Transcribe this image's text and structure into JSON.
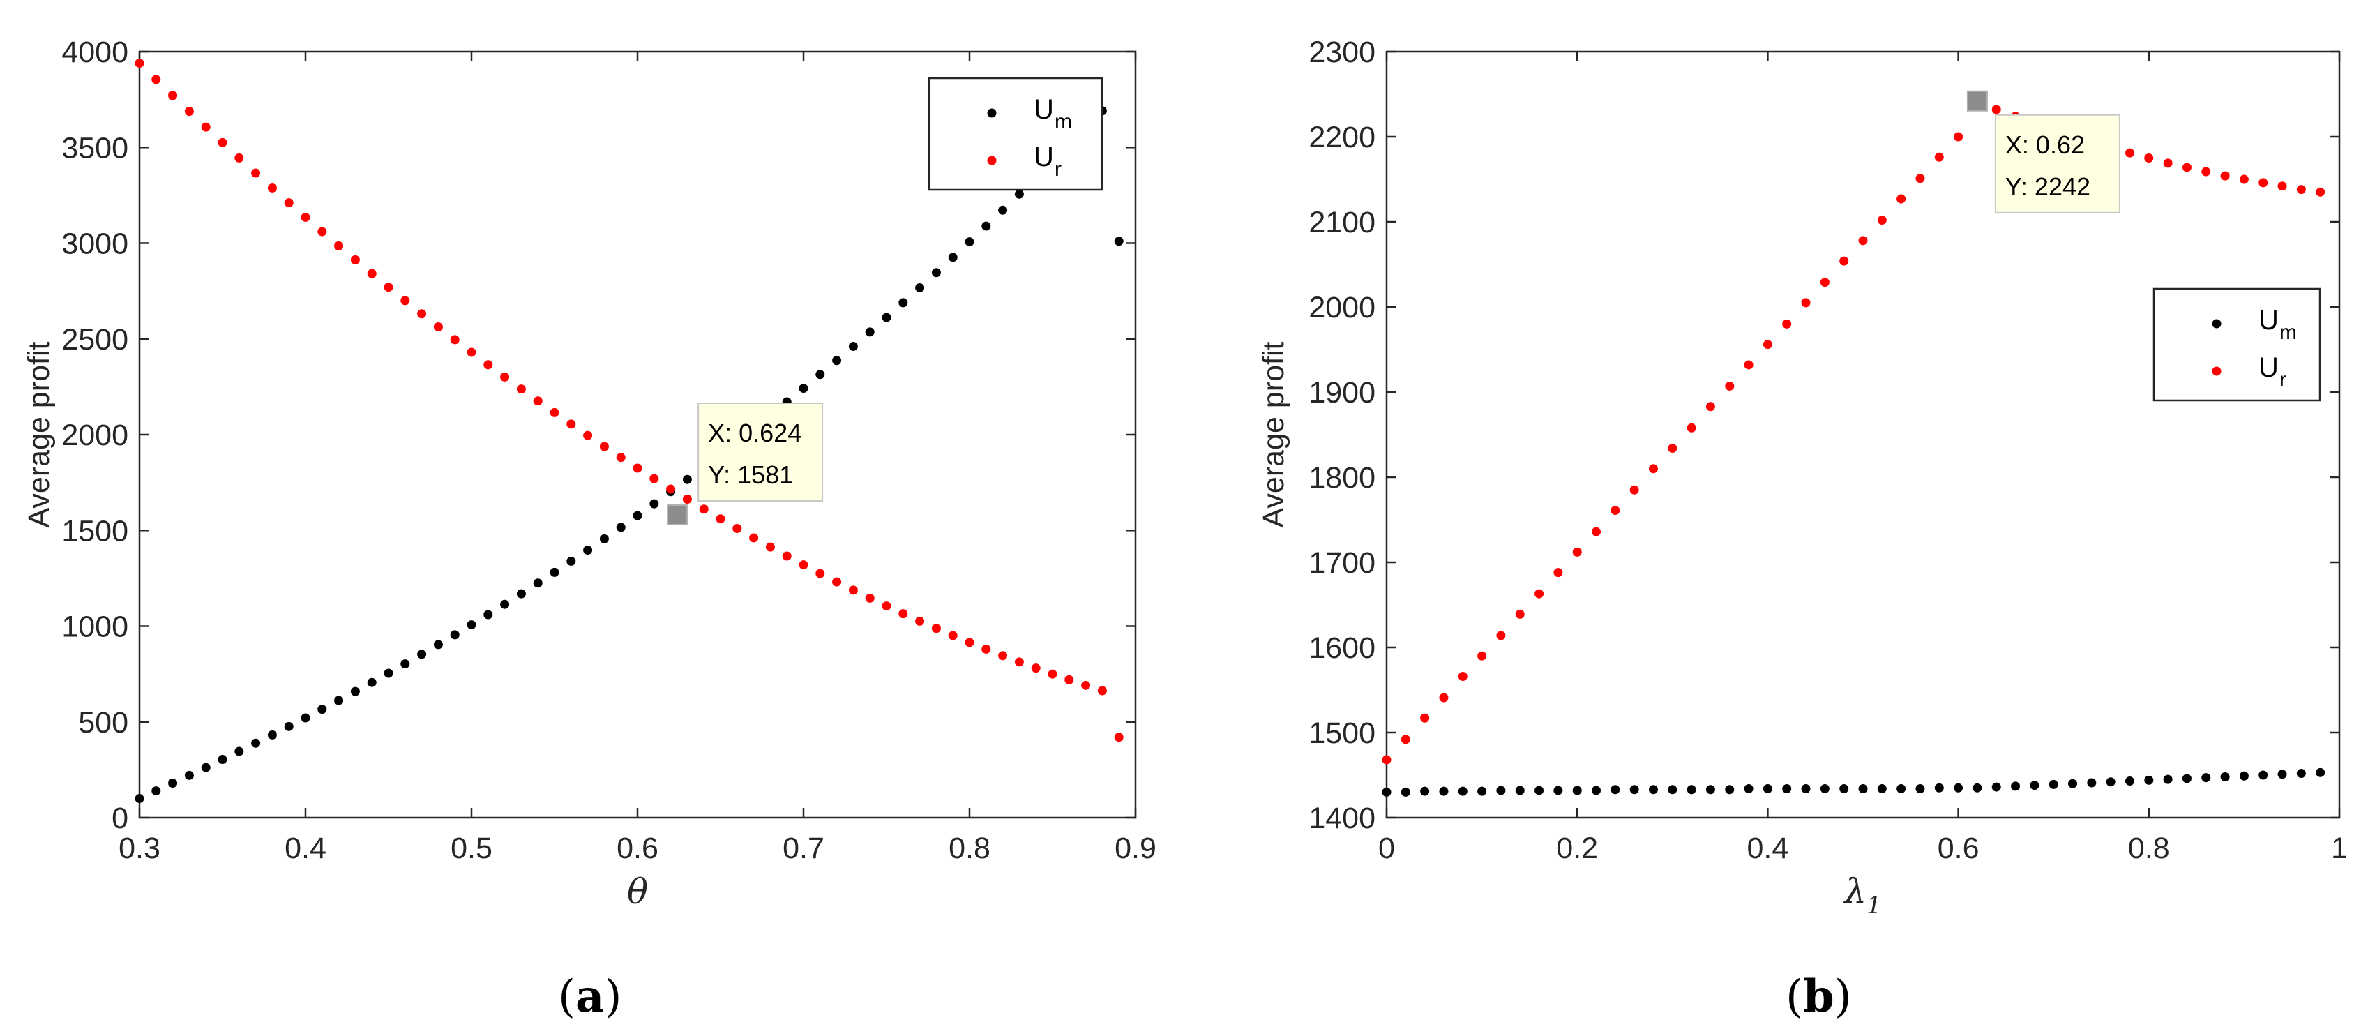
{
  "chart_data": [
    {
      "type": "scatter",
      "caption": "a",
      "xlabel": "θ",
      "ylabel": "Average profit",
      "xlim": [
        0.3,
        0.9
      ],
      "ylim": [
        0,
        4000
      ],
      "xticks": [
        "0.3",
        "0.4",
        "0.5",
        "0.6",
        "0.7",
        "0.8",
        "0.9"
      ],
      "yticks": [
        "0",
        "500",
        "1000",
        "1500",
        "2000",
        "2500",
        "3000",
        "3500",
        "4000"
      ],
      "grid": false,
      "legend_position": "top-right",
      "series": [
        {
          "name": "U",
          "subscript": "m",
          "color": "#000000",
          "x": [
            0.3,
            0.31,
            0.32,
            0.33,
            0.34,
            0.35,
            0.36,
            0.37,
            0.38,
            0.39,
            0.4,
            0.41,
            0.42,
            0.43,
            0.44,
            0.45,
            0.46,
            0.47,
            0.48,
            0.49,
            0.5,
            0.51,
            0.52,
            0.53,
            0.54,
            0.55,
            0.56,
            0.57,
            0.58,
            0.59,
            0.6,
            0.61,
            0.62,
            0.63,
            0.64,
            0.65,
            0.66,
            0.67,
            0.68,
            0.69,
            0.7,
            0.71,
            0.72,
            0.73,
            0.74,
            0.75,
            0.76,
            0.77,
            0.78,
            0.79,
            0.8,
            0.81,
            0.82,
            0.83,
            0.84,
            0.85,
            0.86,
            0.87,
            0.88,
            0.89
          ],
          "y": [
            100,
            140,
            180,
            221,
            262,
            304,
            346,
            389,
            432,
            476,
            521,
            566,
            612,
            659,
            706,
            754,
            803,
            853,
            904,
            955,
            1007,
            1060,
            1114,
            1169,
            1225,
            1281,
            1339,
            1397,
            1456,
            1516,
            1577,
            1639,
            1702,
            1766,
            1831,
            1897,
            1964,
            2032,
            2101,
            2171,
            2242,
            2314,
            2387,
            2461,
            2536,
            2612,
            2689,
            2767,
            2846,
            2926,
            3007,
            3089,
            3172,
            3256,
            3341,
            3427,
            3514,
            3602,
            3691,
            3010
          ]
        },
        {
          "name": "U",
          "subscript": "r",
          "color": "#ff0000",
          "x": [
            0.3,
            0.31,
            0.32,
            0.33,
            0.34,
            0.35,
            0.36,
            0.37,
            0.38,
            0.39,
            0.4,
            0.41,
            0.42,
            0.43,
            0.44,
            0.45,
            0.46,
            0.47,
            0.48,
            0.49,
            0.5,
            0.51,
            0.52,
            0.53,
            0.54,
            0.55,
            0.56,
            0.57,
            0.58,
            0.59,
            0.6,
            0.61,
            0.62,
            0.63,
            0.64,
            0.65,
            0.66,
            0.67,
            0.68,
            0.69,
            0.7,
            0.71,
            0.72,
            0.73,
            0.74,
            0.75,
            0.76,
            0.77,
            0.78,
            0.79,
            0.8,
            0.81,
            0.82,
            0.83,
            0.84,
            0.85,
            0.86,
            0.87,
            0.88,
            0.89
          ],
          "y": [
            3940,
            3855,
            3771,
            3688,
            3606,
            3525,
            3445,
            3366,
            3288,
            3211,
            3135,
            3060,
            2986,
            2913,
            2841,
            2770,
            2700,
            2631,
            2563,
            2496,
            2430,
            2365,
            2301,
            2238,
            2176,
            2115,
            2055,
            1996,
            1938,
            1881,
            1825,
            1770,
            1716,
            1663,
            1611,
            1560,
            1510,
            1461,
            1413,
            1366,
            1320,
            1275,
            1231,
            1188,
            1146,
            1105,
            1065,
            1026,
            988,
            951,
            915,
            880,
            846,
            813,
            781,
            750,
            720,
            691,
            663,
            420
          ]
        }
      ],
      "datatip": {
        "x_label": "X: 0.624",
        "y_label": "Y: 1581",
        "x": 0.624,
        "y": 1581
      }
    },
    {
      "type": "scatter",
      "caption": "b",
      "xlabel": "λ",
      "xlabel_subscript": "1",
      "ylabel": "Average profit",
      "xlim": [
        0,
        1
      ],
      "ylim": [
        1400,
        2300
      ],
      "xticks": [
        "0",
        "0.2",
        "0.4",
        "0.6",
        "0.8",
        "1"
      ],
      "yticks": [
        "1400",
        "1500",
        "1600",
        "1700",
        "1800",
        "1900",
        "2000",
        "2100",
        "2200",
        "2300"
      ],
      "grid": false,
      "legend_position": "middle-right",
      "series": [
        {
          "name": "U",
          "subscript": "m",
          "color": "#000000",
          "x": [
            0,
            0.02,
            0.04,
            0.06,
            0.08,
            0.1,
            0.12,
            0.14,
            0.16,
            0.18,
            0.2,
            0.22,
            0.24,
            0.26,
            0.28,
            0.3,
            0.32,
            0.34,
            0.36,
            0.38,
            0.4,
            0.42,
            0.44,
            0.46,
            0.48,
            0.5,
            0.52,
            0.54,
            0.56,
            0.58,
            0.6,
            0.62,
            0.64,
            0.66,
            0.68,
            0.7,
            0.72,
            0.74,
            0.76,
            0.78,
            0.8,
            0.82,
            0.84,
            0.86,
            0.88,
            0.9,
            0.92,
            0.94,
            0.96,
            0.98
          ],
          "y": [
            1430,
            1430,
            1431,
            1431,
            1431,
            1431,
            1432,
            1432,
            1432,
            1432,
            1432,
            1432,
            1433,
            1433,
            1433,
            1433,
            1433,
            1433,
            1433,
            1434,
            1434,
            1434,
            1434,
            1434,
            1434,
            1434,
            1434,
            1434,
            1434,
            1435,
            1435,
            1435,
            1436,
            1437,
            1438,
            1439,
            1440,
            1441,
            1442,
            1443,
            1444,
            1445,
            1446,
            1447,
            1448,
            1449,
            1450,
            1451,
            1452,
            1453
          ]
        },
        {
          "name": "U",
          "subscript": "r",
          "color": "#ff0000",
          "x": [
            0,
            0.02,
            0.04,
            0.06,
            0.08,
            0.1,
            0.12,
            0.14,
            0.16,
            0.18,
            0.2,
            0.22,
            0.24,
            0.26,
            0.28,
            0.3,
            0.32,
            0.34,
            0.36,
            0.38,
            0.4,
            0.42,
            0.44,
            0.46,
            0.48,
            0.5,
            0.52,
            0.54,
            0.56,
            0.58,
            0.6,
            0.62,
            0.64,
            0.66,
            0.68,
            0.7,
            0.72,
            0.74,
            0.76,
            0.78,
            0.8,
            0.82,
            0.84,
            0.86,
            0.88,
            0.9,
            0.92,
            0.94,
            0.96,
            0.98
          ],
          "y": [
            1468,
            1492,
            1517,
            1541,
            1566,
            1590,
            1614,
            1639,
            1663,
            1688,
            1712,
            1736,
            1761,
            1785,
            1810,
            1834,
            1858,
            1883,
            1907,
            1932,
            1956,
            1980,
            2005,
            2029,
            2054,
            2078,
            2102,
            2127,
            2151,
            2176,
            2200,
            2242,
            2232,
            2224,
            2216,
            2208,
            2201,
            2194,
            2187,
            2181,
            2175,
            2169,
            2164,
            2159,
            2154,
            2150,
            2146,
            2142,
            2138,
            2135
          ]
        }
      ],
      "datatip": {
        "x_label": "X: 0.62",
        "y_label": "Y: 2242",
        "x": 0.62,
        "y": 2242
      }
    }
  ]
}
